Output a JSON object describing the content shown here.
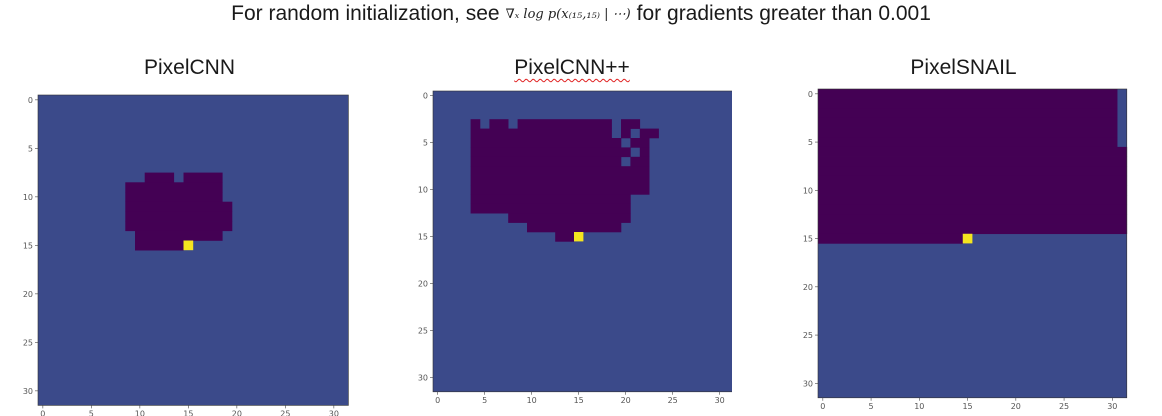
{
  "headline": {
    "prefix": "For random initialization, see",
    "formula": "∇ₓ log p(x₍₁₅,₁₅₎ | ⋯)",
    "suffix": "for gradients greater than 0.001"
  },
  "colors": {
    "masked": "#440154",
    "unmasked": "#3b4a8a",
    "target": "#f5e51f"
  },
  "grid": {
    "size": 32,
    "ticks": [
      0,
      5,
      10,
      15,
      20,
      25,
      30
    ],
    "target_pixel": [
      15,
      15
    ]
  },
  "panels": [
    {
      "title": "PixelCNN",
      "rows": [
        {
          "y": 8,
          "spans": [
            [
              11,
              13
            ],
            [
              15,
              18
            ]
          ]
        },
        {
          "y": 9,
          "spans": [
            [
              9,
              18
            ]
          ]
        },
        {
          "y": 10,
          "spans": [
            [
              9,
              18
            ]
          ]
        },
        {
          "y": 11,
          "spans": [
            [
              9,
              19
            ]
          ]
        },
        {
          "y": 12,
          "spans": [
            [
              9,
              19
            ]
          ]
        },
        {
          "y": 13,
          "spans": [
            [
              9,
              19
            ]
          ]
        },
        {
          "y": 14,
          "spans": [
            [
              10,
              18
            ]
          ]
        },
        {
          "y": 15,
          "spans": [
            [
              10,
              14
            ]
          ]
        }
      ]
    },
    {
      "title": "PixelCNN++",
      "rows": [
        {
          "y": 3,
          "spans": [
            [
              4,
              4
            ],
            [
              6,
              7
            ],
            [
              9,
              18
            ],
            [
              20,
              21
            ]
          ]
        },
        {
          "y": 4,
          "spans": [
            [
              4,
              18
            ],
            [
              20,
              20
            ],
            [
              22,
              23
            ]
          ]
        },
        {
          "y": 5,
          "spans": [
            [
              4,
              19
            ],
            [
              21,
              22
            ]
          ]
        },
        {
          "y": 6,
          "spans": [
            [
              4,
              20
            ],
            [
              22,
              22
            ]
          ]
        },
        {
          "y": 7,
          "spans": [
            [
              4,
              19
            ],
            [
              21,
              22
            ]
          ]
        },
        {
          "y": 8,
          "spans": [
            [
              4,
              22
            ]
          ]
        },
        {
          "y": 9,
          "spans": [
            [
              4,
              22
            ]
          ]
        },
        {
          "y": 10,
          "spans": [
            [
              4,
              22
            ]
          ]
        },
        {
          "y": 11,
          "spans": [
            [
              4,
              20
            ]
          ]
        },
        {
          "y": 12,
          "spans": [
            [
              4,
              20
            ]
          ]
        },
        {
          "y": 13,
          "spans": [
            [
              8,
              20
            ]
          ]
        },
        {
          "y": 14,
          "spans": [
            [
              10,
              19
            ]
          ]
        },
        {
          "y": 15,
          "spans": [
            [
              13,
              14
            ]
          ]
        }
      ]
    },
    {
      "title": "PixelSNAIL",
      "rows": [
        {
          "y": 0,
          "spans": [
            [
              0,
              30
            ]
          ]
        },
        {
          "y": 1,
          "spans": [
            [
              0,
              30
            ]
          ]
        },
        {
          "y": 2,
          "spans": [
            [
              0,
              30
            ]
          ]
        },
        {
          "y": 3,
          "spans": [
            [
              0,
              30
            ]
          ]
        },
        {
          "y": 4,
          "spans": [
            [
              0,
              30
            ]
          ]
        },
        {
          "y": 5,
          "spans": [
            [
              0,
              30
            ]
          ]
        },
        {
          "y": 6,
          "spans": [
            [
              0,
              31
            ]
          ]
        },
        {
          "y": 7,
          "spans": [
            [
              0,
              31
            ]
          ]
        },
        {
          "y": 8,
          "spans": [
            [
              0,
              31
            ]
          ]
        },
        {
          "y": 9,
          "spans": [
            [
              0,
              31
            ]
          ]
        },
        {
          "y": 10,
          "spans": [
            [
              0,
              31
            ]
          ]
        },
        {
          "y": 11,
          "spans": [
            [
              0,
              31
            ]
          ]
        },
        {
          "y": 12,
          "spans": [
            [
              0,
              31
            ]
          ]
        },
        {
          "y": 13,
          "spans": [
            [
              0,
              31
            ]
          ]
        },
        {
          "y": 14,
          "spans": [
            [
              0,
              31
            ]
          ]
        },
        {
          "y": 15,
          "spans": [
            [
              0,
              14
            ]
          ]
        }
      ]
    }
  ]
}
